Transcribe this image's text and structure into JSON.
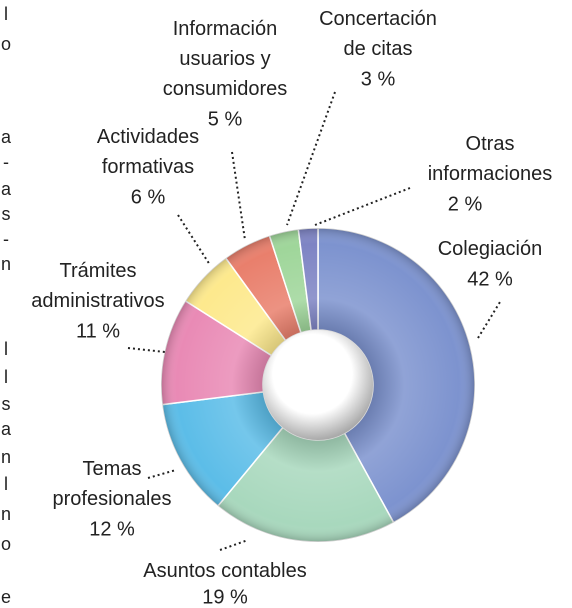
{
  "chart_data": {
    "type": "donut",
    "categories": [
      "Colegiación",
      "Asuntos contables",
      "Temas\nprofesionales",
      "Trámites\nadministrativos",
      "Actividades\nformativas",
      "Información\nusuarios y\nconsumidores",
      "Concertación\nde citas",
      "Otras\ninformaciones"
    ],
    "values": [
      42,
      19,
      12,
      11,
      6,
      5,
      3,
      2
    ],
    "value_labels": [
      "42 %",
      "19 %",
      "12 %",
      "11 %",
      "6 %",
      "5 %",
      "3 %",
      "2 %"
    ],
    "colors": [
      "#7d93cf",
      "#a8d8bd",
      "#5cbde8",
      "#e98ab5",
      "#fde98d",
      "#e97f6c",
      "#9fd69a",
      "#7e84c4"
    ]
  },
  "left_column_fragments": [
    "l",
    "o",
    "a",
    "-",
    "a",
    "s",
    "-",
    "n",
    "l",
    "l",
    "s",
    "a",
    "n",
    "l",
    "n",
    "o",
    "e"
  ]
}
